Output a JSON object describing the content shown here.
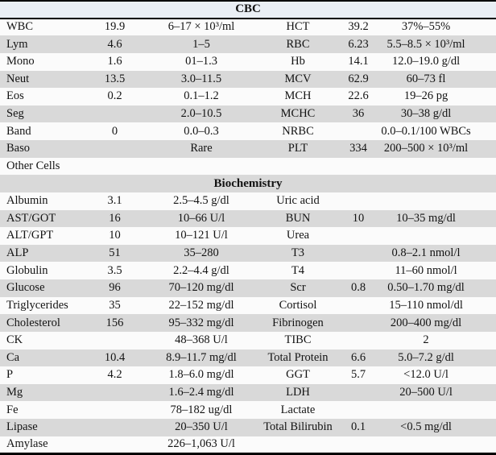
{
  "colors": {
    "rule_black": "#000000",
    "stripe_gray": "#d9d9d9",
    "stripe_white": "#fbfbfb",
    "cbc_header_bg": "#eaeff5",
    "biochemistry_header_bg": "#d9d9d9",
    "text": "#131313"
  },
  "chart_data": {
    "type": "table",
    "title": "Laboratory results table (CBC and Biochemistry)"
  },
  "table": {
    "sections": [
      {
        "name": "cbc",
        "header": "CBC",
        "rows": [
          [
            "WBC",
            "19.9",
            "6–17 × 10³/ml",
            "HCT",
            "39.2",
            "37%–55%"
          ],
          [
            "Lym",
            "4.6",
            "1–5",
            "RBC",
            "6.23",
            "5.5–8.5 × 10³/ml"
          ],
          [
            "Mono",
            "1.6",
            "01–1.3",
            "Hb",
            "14.1",
            "12.0–19.0 g/dl"
          ],
          [
            "Neut",
            "13.5",
            "3.0–11.5",
            "MCV",
            "62.9",
            "60–73 fl"
          ],
          [
            "Eos",
            "0.2",
            "0.1–1.2",
            "MCH",
            "22.6",
            "19–26 pg"
          ],
          [
            "Seg",
            "",
            "2.0–10.5",
            "MCHC",
            "36",
            "30–38 g/dl"
          ],
          [
            "Band",
            "0",
            "0.0–0.3",
            "NRBC",
            "",
            "0.0–0.1/100 WBCs"
          ],
          [
            "Baso",
            "",
            "Rare",
            "PLT",
            "334",
            "200–500 × 10³/ml"
          ],
          [
            "Other Cells",
            "",
            "",
            "",
            "",
            ""
          ]
        ]
      },
      {
        "name": "biochemistry",
        "header": "Biochemistry",
        "rows": [
          [
            "Albumin",
            "3.1",
            "2.5–4.5 g/dl",
            "Uric acid",
            "",
            ""
          ],
          [
            "AST/GOT",
            "16",
            "10–66 U/l",
            "BUN",
            "10",
            "10–35 mg/dl"
          ],
          [
            "ALT/GPT",
            "10",
            "10–121 U/l",
            "Urea",
            "",
            ""
          ],
          [
            "ALP",
            "51",
            "35–280",
            "T3",
            "",
            "0.8–2.1 nmol/l"
          ],
          [
            "Globulin",
            "3.5",
            "2.2–4.4 g/dl",
            "T4",
            "",
            "11–60 nmol/l"
          ],
          [
            "Glucose",
            "96",
            "70–120 mg/dl",
            "Scr",
            "0.8",
            "0.50–1.70 mg/dl"
          ],
          [
            "Triglycerides",
            "35",
            "22–152 mg/dl",
            "Cortisol",
            "",
            "15–110 nmol/dl"
          ],
          [
            "Cholesterol",
            "156",
            "95–332 mg/dl",
            "Fibrinogen",
            "",
            "200–400 mg/dl"
          ],
          [
            "CK",
            "",
            "48–368 U/l",
            "TIBC",
            "",
            "2"
          ],
          [
            "Ca",
            "10.4",
            "8.9–11.7 mg/dl",
            "Total Protein",
            "6.6",
            "5.0–7.2 g/dl"
          ],
          [
            "P",
            "4.2",
            "1.8–6.0 mg/dl",
            "GGT",
            "5.7",
            "<12.0 U/l"
          ],
          [
            "Mg",
            "",
            "1.6–2.4 mg/dl",
            "LDH",
            "",
            "20–500 U/l"
          ],
          [
            "Fe",
            "",
            "78–182 ug/dl",
            "Lactate",
            "",
            ""
          ],
          [
            "Lipase",
            "",
            "20–350 U/l",
            "Total Bilirubin",
            "0.1",
            "<0.5 mg/dl"
          ],
          [
            "Amylase",
            "",
            "226–1,063 U/l",
            "",
            "",
            ""
          ]
        ]
      }
    ]
  }
}
